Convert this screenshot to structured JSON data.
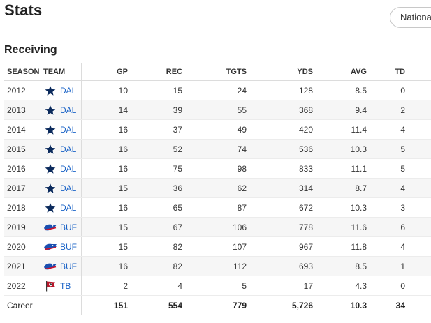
{
  "page": {
    "title": "Stats",
    "league_button": "National"
  },
  "section": {
    "title": "Receiving"
  },
  "columns": {
    "season": "SEASON",
    "team": "TEAM",
    "gp": "GP",
    "rec": "REC",
    "tgts": "TGTS",
    "yds": "YDS",
    "avg": "AVG",
    "td": "TD"
  },
  "rows": [
    {
      "season": "2012",
      "team": "DAL",
      "logo": "dallas-star-icon",
      "gp": "10",
      "rec": "15",
      "tgts": "24",
      "yds": "128",
      "avg": "8.5",
      "td": "0"
    },
    {
      "season": "2013",
      "team": "DAL",
      "logo": "dallas-star-icon",
      "gp": "14",
      "rec": "39",
      "tgts": "55",
      "yds": "368",
      "avg": "9.4",
      "td": "2"
    },
    {
      "season": "2014",
      "team": "DAL",
      "logo": "dallas-star-icon",
      "gp": "16",
      "rec": "37",
      "tgts": "49",
      "yds": "420",
      "avg": "11.4",
      "td": "4"
    },
    {
      "season": "2015",
      "team": "DAL",
      "logo": "dallas-star-icon",
      "gp": "16",
      "rec": "52",
      "tgts": "74",
      "yds": "536",
      "avg": "10.3",
      "td": "5"
    },
    {
      "season": "2016",
      "team": "DAL",
      "logo": "dallas-star-icon",
      "gp": "16",
      "rec": "75",
      "tgts": "98",
      "yds": "833",
      "avg": "11.1",
      "td": "5"
    },
    {
      "season": "2017",
      "team": "DAL",
      "logo": "dallas-star-icon",
      "gp": "15",
      "rec": "36",
      "tgts": "62",
      "yds": "314",
      "avg": "8.7",
      "td": "4"
    },
    {
      "season": "2018",
      "team": "DAL",
      "logo": "dallas-star-icon",
      "gp": "16",
      "rec": "65",
      "tgts": "87",
      "yds": "672",
      "avg": "10.3",
      "td": "3"
    },
    {
      "season": "2019",
      "team": "BUF",
      "logo": "buffalo-bills-icon",
      "gp": "15",
      "rec": "67",
      "tgts": "106",
      "yds": "778",
      "avg": "11.6",
      "td": "6"
    },
    {
      "season": "2020",
      "team": "BUF",
      "logo": "buffalo-bills-icon",
      "gp": "15",
      "rec": "82",
      "tgts": "107",
      "yds": "967",
      "avg": "11.8",
      "td": "4"
    },
    {
      "season": "2021",
      "team": "BUF",
      "logo": "buffalo-bills-icon",
      "gp": "16",
      "rec": "82",
      "tgts": "112",
      "yds": "693",
      "avg": "8.5",
      "td": "1"
    },
    {
      "season": "2022",
      "team": "TB",
      "logo": "tampa-bay-flag-icon",
      "gp": "2",
      "rec": "4",
      "tgts": "5",
      "yds": "17",
      "avg": "4.3",
      "td": "0"
    }
  ],
  "career": {
    "label": "Career",
    "gp": "151",
    "rec": "554",
    "tgts": "779",
    "yds": "5,726",
    "avg": "10.3",
    "td": "34"
  },
  "colors": {
    "link": "#1a63c7",
    "dallas_blue": "#0b2a5c",
    "bills_blue": "#1a4fb0",
    "bills_red": "#d0112b",
    "tb_red": "#b7182b",
    "tb_pewter": "#3a3a3a"
  }
}
